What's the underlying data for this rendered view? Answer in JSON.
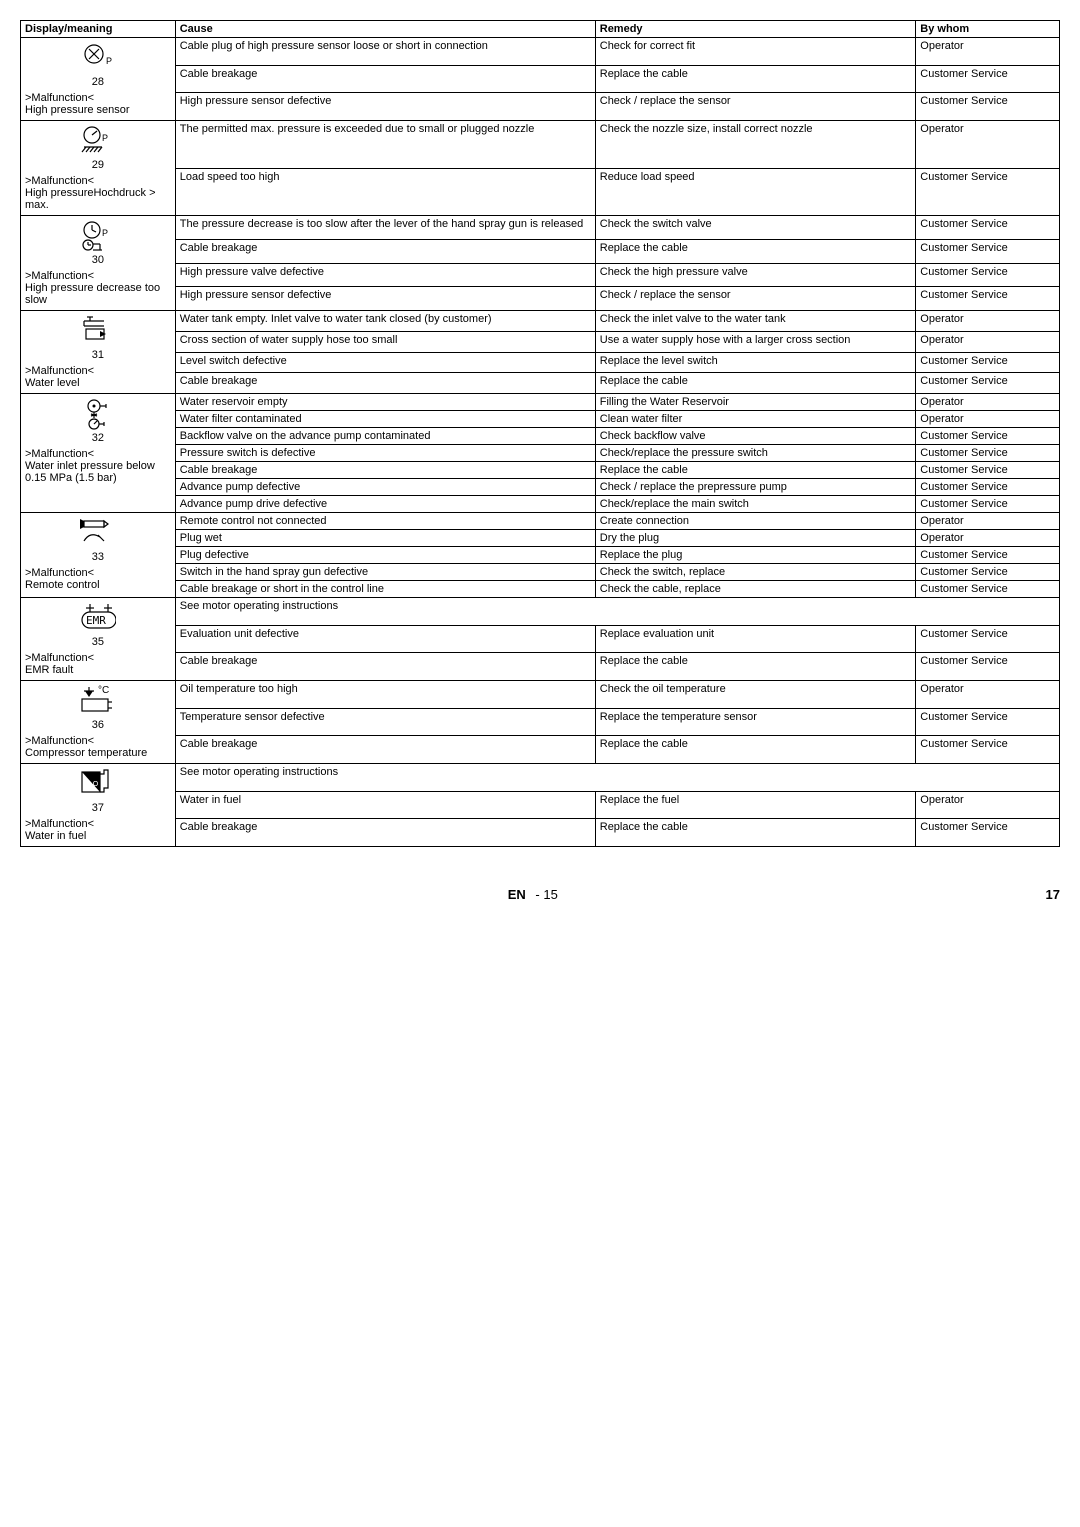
{
  "headers": {
    "display": "Display/meaning",
    "cause": "Cause",
    "remedy": "Remedy",
    "whom": "By whom"
  },
  "footer": {
    "center": "EN",
    "page_inner": "- 15",
    "page_outer": "17"
  },
  "groups": [
    {
      "id": 28,
      "icon": "lamp-x",
      "malfunction": ">Malfunction<\nHigh pressure sensor",
      "rows": [
        {
          "cause": "Cable plug of high pressure sensor loose or short in connection",
          "remedy": "Check for correct fit",
          "whom": "Operator"
        },
        {
          "cause": "Cable breakage",
          "remedy": "Replace the cable",
          "whom": "Customer Service"
        },
        {
          "cause": "High pressure sensor defective",
          "remedy": "Check / replace the sensor",
          "whom": "Customer Service"
        }
      ]
    },
    {
      "id": 29,
      "icon": "gauge-hatch",
      "malfunction": ">Malfunction<\nHigh pressureHochdruck > max.",
      "rows": [
        {
          "cause": "The permitted max. pressure is exceeded due to small or plugged nozzle",
          "remedy": "Check the nozzle size, install correct nozzle",
          "whom": "Operator"
        },
        {
          "cause": "Load speed too high",
          "remedy": "Reduce load speed",
          "whom": "Customer Service"
        }
      ]
    },
    {
      "id": 30,
      "icon": "gauge-clock",
      "malfunction": ">Malfunction<\nHigh pressure decrease too slow",
      "rows": [
        {
          "cause": "The pressure decrease is too slow after the lever of the hand spray gun is released",
          "remedy": "Check the switch valve",
          "whom": "Customer Service"
        },
        {
          "cause": "Cable breakage",
          "remedy": "Replace the cable",
          "whom": "Customer Service"
        },
        {
          "cause": "High pressure valve defective",
          "remedy": "Check the high pressure valve",
          "whom": "Customer Service"
        },
        {
          "cause": "High pressure sensor defective",
          "remedy": "Check / replace the sensor",
          "whom": "Customer Service"
        }
      ]
    },
    {
      "id": 31,
      "icon": "tap",
      "malfunction": ">Malfunction<\nWater level",
      "rows": [
        {
          "cause": "Water tank empty. Inlet valve to water tank closed (by customer)",
          "remedy": "Check the inlet valve to the water tank",
          "whom": "Operator"
        },
        {
          "cause": "Cross section of water supply hose too small",
          "remedy": "Use a water supply hose with a larger cross section",
          "whom": "Operator"
        },
        {
          "cause": "Level switch defective",
          "remedy": "Replace the level switch",
          "whom": "Customer Service"
        },
        {
          "cause": "Cable breakage",
          "remedy": "Replace the cable",
          "whom": "Customer Service"
        }
      ]
    },
    {
      "id": 32,
      "icon": "tap-valve",
      "malfunction": ">Malfunction<\nWater inlet pressure below 0.15 MPa (1.5 bar)",
      "rows": [
        {
          "cause": "Water reservoir empty",
          "remedy": "Filling the Water Reservoir",
          "whom": "Operator"
        },
        {
          "cause": "Water filter contaminated",
          "remedy": "Clean water filter",
          "whom": "Operator"
        },
        {
          "cause": "Backflow valve on the advance pump contaminated",
          "remedy": "Check backflow valve",
          "whom": "Customer Service"
        },
        {
          "cause": "Pressure switch is defective",
          "remedy": "Check/replace the pressure switch",
          "whom": "Customer Service"
        },
        {
          "cause": "Cable breakage",
          "remedy": "Replace the cable",
          "whom": "Customer Service"
        },
        {
          "cause": "Advance pump defective",
          "remedy": "Check / replace the prepressure pump",
          "whom": "Customer Service"
        },
        {
          "cause": "Advance pump drive defective",
          "remedy": "Check/replace the main switch",
          "whom": "Customer Service"
        }
      ]
    },
    {
      "id": 33,
      "icon": "remote",
      "malfunction": ">Malfunction<\nRemote control",
      "rows": [
        {
          "cause": "Remote control not connected",
          "remedy": "Create connection",
          "whom": "Operator"
        },
        {
          "cause": "Plug wet",
          "remedy": "Dry the plug",
          "whom": "Operator"
        },
        {
          "cause": "Plug defective",
          "remedy": "Replace the plug",
          "whom": "Customer Service"
        },
        {
          "cause": "Switch in the hand spray gun defective",
          "remedy": "Check the switch, replace",
          "whom": "Customer Service"
        },
        {
          "cause": "Cable breakage or short in the control line",
          "remedy": "Check the cable, replace",
          "whom": "Customer Service"
        }
      ]
    },
    {
      "id": 35,
      "icon": "emr",
      "malfunction": ">Malfunction<\nEMR fault",
      "instructions": "See motor operating instructions",
      "rows": [
        {
          "cause": "Evaluation unit defective",
          "remedy": "Replace evaluation unit",
          "whom": "Customer Service"
        },
        {
          "cause": "Cable breakage",
          "remedy": "Replace the cable",
          "whom": "Customer Service"
        }
      ]
    },
    {
      "id": 36,
      "icon": "temp",
      "malfunction": ">Malfunction<\nCompressor temperature",
      "rows": [
        {
          "cause": "Oil temperature too high",
          "remedy": "Check the oil temperature",
          "whom": "Operator"
        },
        {
          "cause": "Temperature sensor defective",
          "remedy": "Replace the temperature sensor",
          "whom": "Customer Service"
        },
        {
          "cause": "Cable breakage",
          "remedy": "Replace the cable",
          "whom": "Customer Service"
        }
      ]
    },
    {
      "id": 37,
      "icon": "water-fuel",
      "malfunction": ">Malfunction<\nWater in fuel",
      "instructions": "See motor operating instructions",
      "rows": [
        {
          "cause": "Water in fuel",
          "remedy": "Replace the fuel",
          "whom": "Operator"
        },
        {
          "cause": "Cable breakage",
          "remedy": "Replace the cable",
          "whom": "Customer Service"
        }
      ]
    }
  ]
}
